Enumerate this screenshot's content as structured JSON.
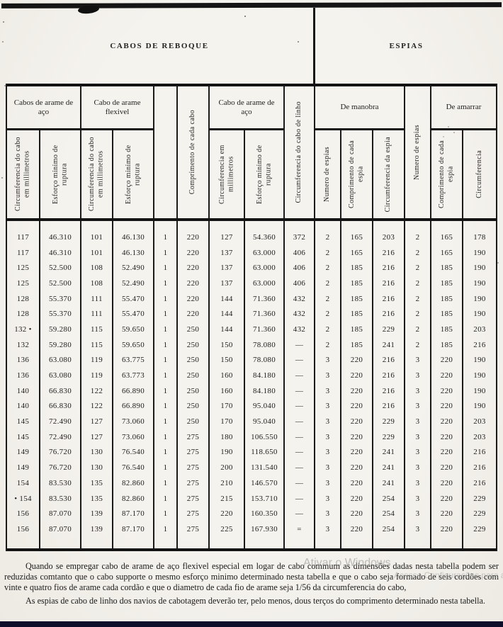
{
  "banner": {
    "left": "CABOS DE REBOQUE",
    "right": "ESPIAS"
  },
  "table": {
    "groups": {
      "g1": "Cabos de arame de aço",
      "g2": "Cabo de arame flexivel",
      "g3": "Cabo de arame de aço",
      "g4": "De manobra",
      "g5": "De amarrar"
    },
    "columns": {
      "c1": "Circumferencia do cabo em millimetros",
      "c2": "Esforço minimo de ruptura",
      "c3": "Circumferencia do cabo em millimetros",
      "c4": "Esforço minimo de ruptura",
      "c5": "",
      "c6": "Comprimento de cada cabo",
      "c7": "Circumferencia em millimetros",
      "c8": "Esforço minimo de ruptura",
      "c9": "Circumferencia do cabo de linho",
      "c10": "Numero de espias",
      "c11": "Comprimento de cada espia",
      "c12": "Circumferencia da espia",
      "c13": "Numero de espias",
      "c14": "Comprimento de cada espia",
      "c15": "Circumferencia"
    },
    "rows": [
      [
        "117",
        "46.310",
        "101",
        "46.130",
        "1",
        "220",
        "127",
        "54.360",
        "372",
        "2",
        "165",
        "203",
        "2",
        "165",
        "178"
      ],
      [
        "117",
        "46.310",
        "101",
        "46.130",
        "1",
        "220",
        "137",
        "63.000",
        "406",
        "2",
        "165",
        "216",
        "2",
        "165",
        "190"
      ],
      [
        "125",
        "52.500",
        "108",
        "52.490",
        "1",
        "220",
        "137",
        "63.000",
        "406",
        "2",
        "185",
        "216",
        "2",
        "185",
        "190"
      ],
      [
        "125",
        "52.500",
        "108",
        "52.490",
        "1",
        "220",
        "137",
        "63.000",
        "406",
        "2",
        "185",
        "216",
        "2",
        "185",
        "190"
      ],
      [
        "128",
        "55.370",
        "111",
        "55.470",
        "1",
        "220",
        "144",
        "71.360",
        "432",
        "2",
        "185",
        "216",
        "2",
        "185",
        "190"
      ],
      [
        "128",
        "55.370",
        "111",
        "55.470",
        "1",
        "220",
        "144",
        "71.360",
        "432",
        "2",
        "185",
        "216",
        "2",
        "185",
        "190"
      ],
      [
        "132 •",
        "59.280",
        "115",
        "59.650",
        "1",
        "250",
        "144",
        "71.360",
        "432",
        "2",
        "185",
        "229",
        "2",
        "185",
        "203"
      ],
      [
        "132",
        "59.280",
        "115",
        "59.650",
        "1",
        "250",
        "150",
        "78.080",
        "—",
        "2",
        "185",
        "241",
        "2",
        "185",
        "216"
      ],
      [
        "136",
        "63.080",
        "119",
        "63.775",
        "1",
        "250",
        "150",
        "78.080",
        "—",
        "3",
        "220",
        "216",
        "3",
        "220",
        "190"
      ],
      [
        "136",
        "63.080",
        "119",
        "63.773",
        "1",
        "250",
        "160",
        "84.180",
        "—",
        "3",
        "220",
        "216",
        "3",
        "220",
        "190"
      ],
      [
        "140",
        "66.830",
        "122",
        "66.890",
        "1",
        "250",
        "160",
        "84.180",
        "—",
        "3",
        "220",
        "216",
        "3",
        "220",
        "190"
      ],
      [
        "140",
        "66.830",
        "122",
        "66.890",
        "1",
        "250",
        "170",
        "95.040",
        "—",
        "3",
        "220",
        "216",
        "3",
        "220",
        "190"
      ],
      [
        "145",
        "72.490",
        "127",
        "73.060",
        "1",
        "250",
        "170",
        "95.040",
        "—",
        "3",
        "220",
        "229",
        "3",
        "220",
        "203"
      ],
      [
        "145",
        "72.490",
        "127",
        "73.060",
        "1",
        "275",
        "180",
        "106.550",
        "—",
        "3",
        "220",
        "229",
        "3",
        "220",
        "203"
      ],
      [
        "149",
        "76.720",
        "130",
        "76.540",
        "1",
        "275",
        "190",
        "118.650",
        "—",
        "3",
        "220",
        "241",
        "3",
        "220",
        "216"
      ],
      [
        "149",
        "76.720",
        "130",
        "76.540",
        "1",
        "275",
        "200",
        "131.540",
        "—",
        "3",
        "220",
        "241",
        "3",
        "220",
        "216"
      ],
      [
        "154",
        "83.530",
        "135",
        "82.860",
        "1",
        "275",
        "210",
        "146.570",
        "—",
        "3",
        "220",
        "241",
        "3",
        "220",
        "216"
      ],
      [
        "• 154",
        "83.530",
        "135",
        "82.860",
        "1",
        "275",
        "215",
        "153.710",
        "—",
        "3",
        "220",
        "254",
        "3",
        "220",
        "229"
      ],
      [
        "156",
        "87.070",
        "139",
        "87.170",
        "1",
        "275",
        "220",
        "160.350",
        "—",
        "3",
        "220",
        "254",
        "3",
        "220",
        "229"
      ],
      [
        "156",
        "87.070",
        "139",
        "87.170",
        "1",
        "275",
        "225",
        "167.930",
        "=",
        "3",
        "220",
        "254",
        "3",
        "220",
        "229"
      ]
    ]
  },
  "notes": {
    "p1": "Quando se empregar cabo de arame de aço flexivel especial em logar de cabo commum as dimensões dadas nesta tabella podem ser reduzidas comtanto que o cabo supporte o mesmo esforço minimo determinado nesta tabella e que o cabo seja formado de seis cordões com vinte e quatro fios de arame cada cordão e que o diametro de cada fio de arame seja 1/56 da circumferencia do cabo,",
    "p2": "As espias de cabo de linho dos navios de cabotagem deverão ter, pelo menos, dous terços do comprimento determinado nesta tabella."
  },
  "watermark": {
    "line1": "Ativar o Windows",
    "line2": "Acesse Configurações para ativar o Windows"
  },
  "colors": {
    "ink": "#1a1a1a",
    "paper": "#f3f1ec",
    "bottom_bar": "#0d0f2a",
    "watermark": "#8c8c8c"
  }
}
